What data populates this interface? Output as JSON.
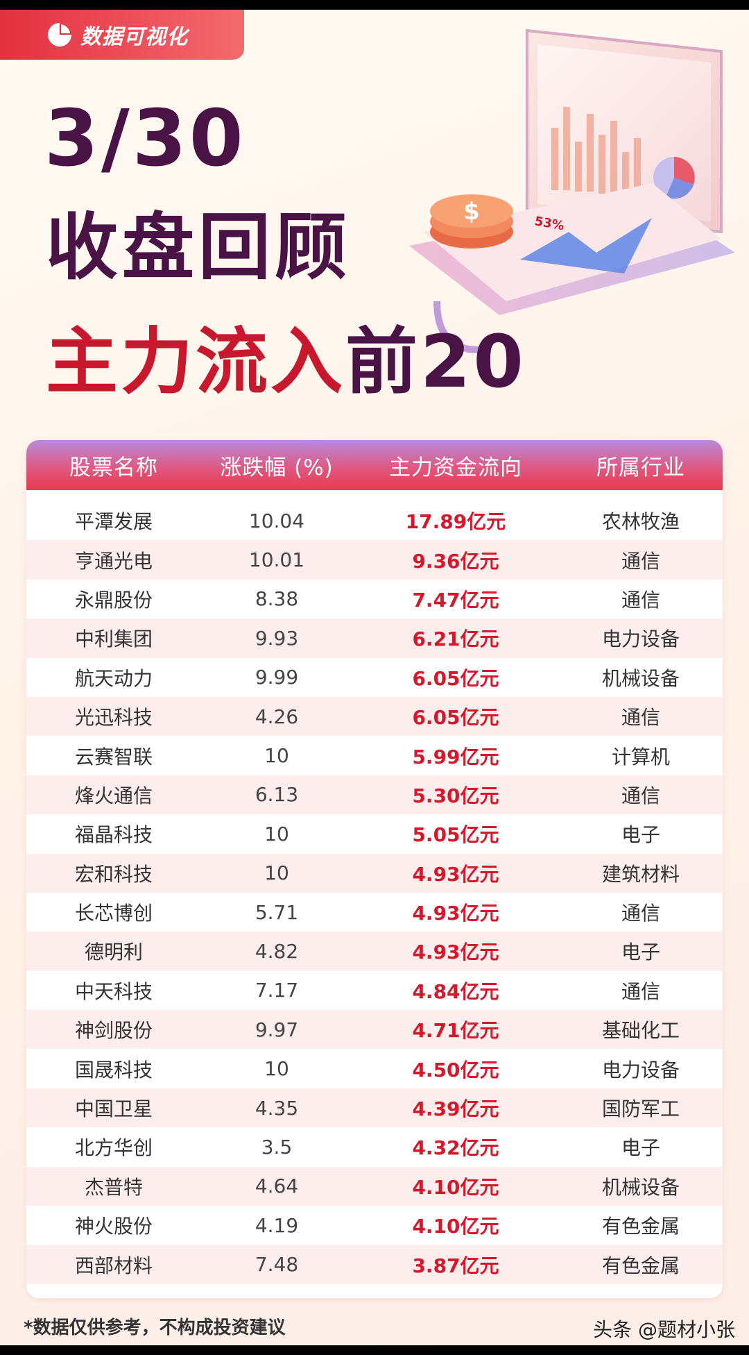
{
  "brand": {
    "label": "数据可视化",
    "icon": "pie-chart-icon"
  },
  "title": {
    "date": "3/30",
    "main": "收盘回顾",
    "sub_prefix": "主力流入",
    "sub_highlight": "前20"
  },
  "illustration": {
    "badge": "53%",
    "coin_symbol": "$"
  },
  "table": {
    "headers": [
      "股票名称",
      "涨跌幅 (%)",
      "主力资金流向",
      "所属行业"
    ],
    "rows": [
      {
        "name": "平潭发展",
        "change": "10.04",
        "flow": "17.89亿元",
        "industry": "农林牧渔"
      },
      {
        "name": "亨通光电",
        "change": "10.01",
        "flow": "9.36亿元",
        "industry": "通信"
      },
      {
        "name": "永鼎股份",
        "change": "8.38",
        "flow": "7.47亿元",
        "industry": "通信"
      },
      {
        "name": "中利集团",
        "change": "9.93",
        "flow": "6.21亿元",
        "industry": "电力设备"
      },
      {
        "name": "航天动力",
        "change": "9.99",
        "flow": "6.05亿元",
        "industry": "机械设备"
      },
      {
        "name": "光迅科技",
        "change": "4.26",
        "flow": "6.05亿元",
        "industry": "通信"
      },
      {
        "name": "云赛智联",
        "change": "10",
        "flow": "5.99亿元",
        "industry": "计算机"
      },
      {
        "name": "烽火通信",
        "change": "6.13",
        "flow": "5.30亿元",
        "industry": "通信"
      },
      {
        "name": "福晶科技",
        "change": "10",
        "flow": "5.05亿元",
        "industry": "电子"
      },
      {
        "name": "宏和科技",
        "change": "10",
        "flow": "4.93亿元",
        "industry": "建筑材料"
      },
      {
        "name": "长芯博创",
        "change": "5.71",
        "flow": "4.93亿元",
        "industry": "通信"
      },
      {
        "name": "德明利",
        "change": "4.82",
        "flow": "4.93亿元",
        "industry": "电子"
      },
      {
        "name": "中天科技",
        "change": "7.17",
        "flow": "4.84亿元",
        "industry": "通信"
      },
      {
        "name": "神剑股份",
        "change": "9.97",
        "flow": "4.71亿元",
        "industry": "基础化工"
      },
      {
        "name": "国晟科技",
        "change": "10",
        "flow": "4.50亿元",
        "industry": "电力设备"
      },
      {
        "name": "中国卫星",
        "change": "4.35",
        "flow": "4.39亿元",
        "industry": "国防军工"
      },
      {
        "name": "北方华创",
        "change": "3.5",
        "flow": "4.32亿元",
        "industry": "电子"
      },
      {
        "name": "杰普特",
        "change": "4.64",
        "flow": "4.10亿元",
        "industry": "机械设备"
      },
      {
        "name": "神火股份",
        "change": "4.19",
        "flow": "4.10亿元",
        "industry": "有色金属"
      },
      {
        "name": "西部材料",
        "change": "7.48",
        "flow": "3.87亿元",
        "industry": "有色金属"
      }
    ]
  },
  "footer": {
    "disclaimer": "*数据仅供参考，不构成投资建议",
    "watermark": "头条 @题材小张"
  },
  "colors": {
    "brand_red": "#e4303f",
    "title_purple": "#4a1346",
    "title_red": "#c8182e",
    "flow_red": "#d3192b",
    "row_stripe": "#fdeeed"
  }
}
